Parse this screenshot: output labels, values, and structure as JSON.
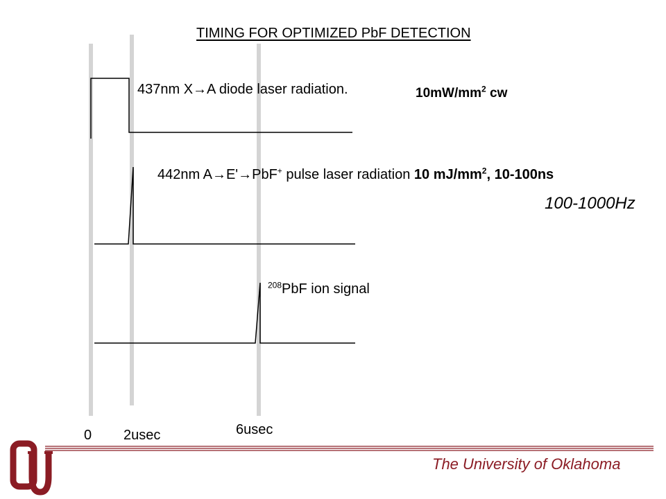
{
  "title": "TIMING FOR OPTIMIZED PbF DETECTION",
  "channels": {
    "diode": {
      "label": "437nm X→A diode laser radiation.",
      "power_main": "10mW/mm",
      "power_sup": "2",
      "power_tail": " cw"
    },
    "pulse": {
      "label_main": "442nm A→E'→PbF",
      "label_sup": "+",
      "label_mid": " pulse laser radiation ",
      "power_main": "10 mJ/mm",
      "power_sup": "2",
      "power_tail": ", 10-100ns",
      "rate": "100-1000Hz"
    },
    "signal": {
      "isotope_sup": "208",
      "label": "PbF ion signal"
    }
  },
  "time_ticks": {
    "t0": "0",
    "t2": "2usec",
    "t6": "6usec"
  },
  "footer": {
    "institution": "The University of Oklahoma",
    "logo_text": "OU",
    "brand_color": "#8b1c24"
  },
  "colors": {
    "marker_lines": "#d4d4d4",
    "traces": "#000000"
  }
}
